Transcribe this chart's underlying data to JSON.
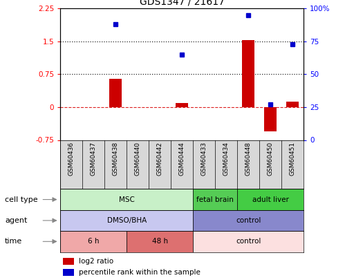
{
  "title": "GDS1347 / 21617",
  "samples": [
    "GSM60436",
    "GSM60437",
    "GSM60438",
    "GSM60440",
    "GSM60442",
    "GSM60444",
    "GSM60433",
    "GSM60434",
    "GSM60448",
    "GSM60450",
    "GSM60451"
  ],
  "log2_ratio": [
    0.0,
    0.0,
    0.65,
    0.0,
    0.0,
    0.1,
    0.0,
    0.0,
    1.52,
    -0.55,
    0.12
  ],
  "percentile_rank": [
    null,
    null,
    88,
    null,
    null,
    65,
    null,
    null,
    95,
    27,
    73
  ],
  "ylim_left": [
    -0.75,
    2.25
  ],
  "ylim_right": [
    0,
    100
  ],
  "yticks_left": [
    -0.75,
    0.0,
    0.75,
    1.5,
    2.25
  ],
  "yticks_right": [
    0,
    25,
    50,
    75,
    100
  ],
  "ytick_labels_left": [
    "-0.75",
    "0",
    "0.75",
    "1.5",
    "2.25"
  ],
  "ytick_labels_right": [
    "0",
    "25",
    "50",
    "75",
    "100%"
  ],
  "bar_color": "#cc0000",
  "dot_color": "#0000cc",
  "cell_type_row": {
    "label": "cell type",
    "groups": [
      {
        "text": "MSC",
        "start": 0,
        "end": 5,
        "color": "#c8f0c8"
      },
      {
        "text": "fetal brain",
        "start": 6,
        "end": 7,
        "color": "#55cc55"
      },
      {
        "text": "adult liver",
        "start": 8,
        "end": 10,
        "color": "#44cc44"
      }
    ]
  },
  "agent_row": {
    "label": "agent",
    "groups": [
      {
        "text": "DMSO/BHA",
        "start": 0,
        "end": 5,
        "color": "#c8c8f0"
      },
      {
        "text": "control",
        "start": 6,
        "end": 10,
        "color": "#8888cc"
      }
    ]
  },
  "time_row": {
    "label": "time",
    "groups": [
      {
        "text": "6 h",
        "start": 0,
        "end": 2,
        "color": "#f0a8a8"
      },
      {
        "text": "48 h",
        "start": 3,
        "end": 5,
        "color": "#dd7070"
      },
      {
        "text": "control",
        "start": 6,
        "end": 10,
        "color": "#fce0e0"
      }
    ]
  }
}
